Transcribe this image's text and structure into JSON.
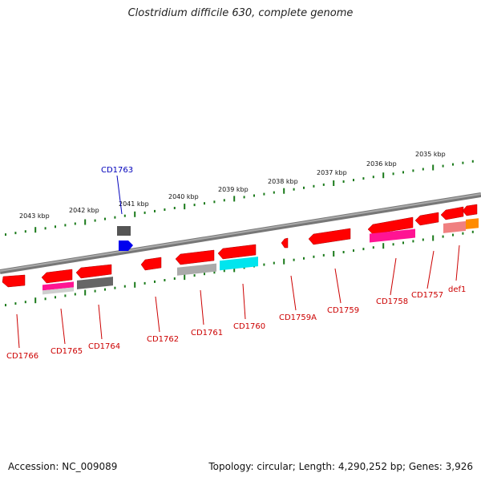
{
  "title": "Clostridium difficile 630, complete genome",
  "footer": {
    "accession": "Accession: NC_009089",
    "summary": "Topology: circular; Length: 4,290,252 bp; Genes: 3,926"
  },
  "colors": {
    "gene": "#ff0000",
    "gene_label": "#cc0000",
    "highlight_label": "#0000bb",
    "tick": "#1a7a1a",
    "backbone": "#888888"
  },
  "scale_labels": [
    "2043 kbp",
    "2042 kbp",
    "2041 kbp",
    "2040 kbp",
    "2039 kbp",
    "2038 kbp",
    "2037 kbp",
    "2036 kbp",
    "2035 kbp"
  ],
  "gene_labels": [
    {
      "name": "CD1766",
      "highlight": false
    },
    {
      "name": "CD1765",
      "highlight": false
    },
    {
      "name": "CD1764",
      "highlight": false
    },
    {
      "name": "CD1763",
      "highlight": true
    },
    {
      "name": "CD1762",
      "highlight": false
    },
    {
      "name": "CD1761",
      "highlight": false
    },
    {
      "name": "CD1760",
      "highlight": false
    },
    {
      "name": "CD1759A",
      "highlight": false
    },
    {
      "name": "CD1759",
      "highlight": false
    },
    {
      "name": "CD1758",
      "highlight": false
    },
    {
      "name": "CD1757",
      "highlight": false
    },
    {
      "name": "def1",
      "highlight": false
    }
  ]
}
